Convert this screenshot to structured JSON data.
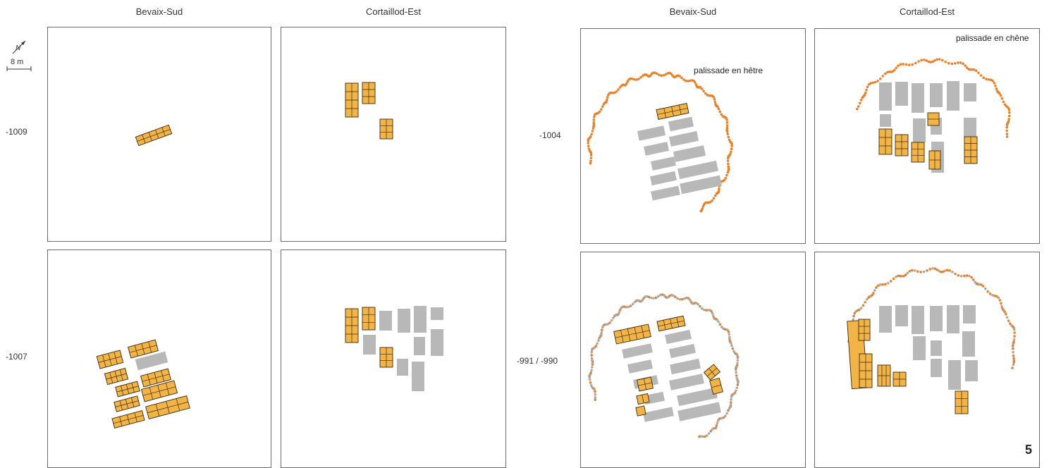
{
  "columns": [
    "Bevaix-Sud",
    "Cortaillod-Est",
    "Bevaix-Sud",
    "Cortaillod-Est"
  ],
  "rows": [
    "-1009",
    "-1007",
    "-1004",
    "-991 / -990"
  ],
  "scale": {
    "north": "N",
    "bar_label": "8 m"
  },
  "annotations": {
    "beech": "palissade en hêtre",
    "oak": "palissade en chêne"
  },
  "page_number": "5",
  "colors": {
    "new_house": "#f2b446",
    "old_house": "#b8b8b8",
    "palisade_orange": "#e8822a",
    "palisade_grey": "#a8a8a8",
    "outline": "#3a2a10"
  }
}
